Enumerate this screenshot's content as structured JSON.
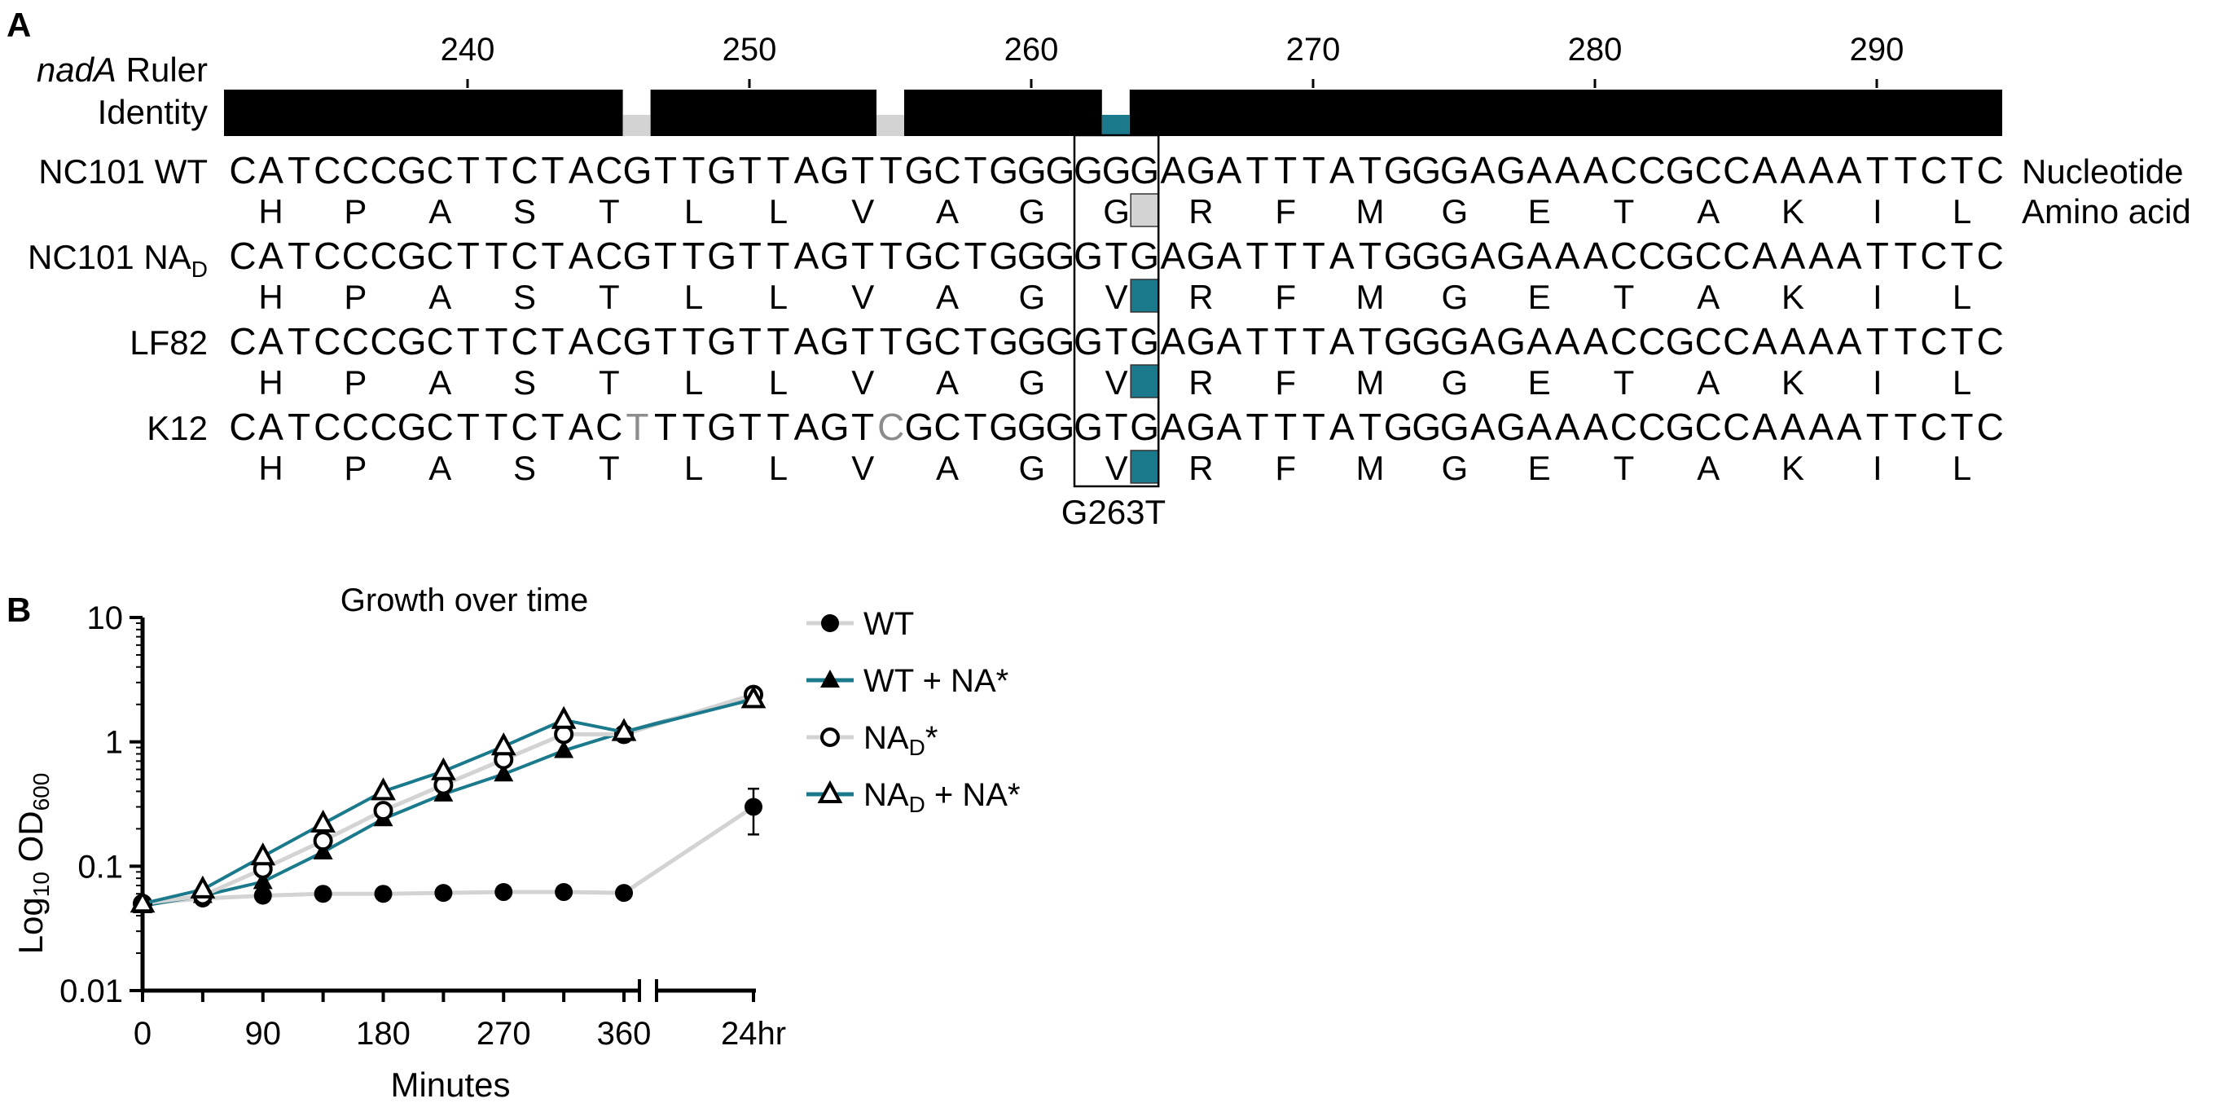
{
  "panel_a": {
    "letter": "A",
    "ruler_gene": "nadA",
    "ruler_word": "Ruler",
    "identity_label": "Identity",
    "ruler_ticks": [
      "240",
      "250",
      "260",
      "270",
      "280",
      "290"
    ],
    "identity_gaps": [
      {
        "position": 246,
        "color": "#d3d3d3"
      },
      {
        "position": 255,
        "color": "#d3d3d3"
      },
      {
        "position": 263,
        "color": "#1a7a8c"
      }
    ],
    "right_labels": {
      "nucleotide": "Nucleotide",
      "amino_acid": "Amino acid"
    },
    "mutation_label": "G263T",
    "sequences": [
      {
        "name": "NC101 WT",
        "name_sub": "",
        "nt": "CATCCCGCTTCTACGTTGTTAGTTGCTGGGGGGAGATTTATGGGAGAAACCGCCAAAATTCTC",
        "aa": [
          "H",
          "P",
          "A",
          "S",
          "T",
          "L",
          "L",
          "V",
          "A",
          "G",
          "G",
          "R",
          "F",
          "M",
          "G",
          "E",
          "T",
          "A",
          "K",
          "I",
          "L"
        ],
        "grey_nt": [],
        "highlight_aa_color": "#d3d3d3"
      },
      {
        "name": "NC101 NA",
        "name_sub": "D",
        "nt": "CATCCCGCTTCTACGTTGTTAGTTGCTGGGGTGAGATTTATGGGAGAAACCGCCAAAATTCTC",
        "aa": [
          "H",
          "P",
          "A",
          "S",
          "T",
          "L",
          "L",
          "V",
          "A",
          "G",
          "V",
          "R",
          "F",
          "M",
          "G",
          "E",
          "T",
          "A",
          "K",
          "I",
          "L"
        ],
        "grey_nt": [],
        "highlight_aa_color": "#1a7a8c"
      },
      {
        "name": "LF82",
        "name_sub": "",
        "nt": "CATCCCGCTTCTACGTTGTTAGTTGCTGGGGTGAGATTTATGGGAGAAACCGCCAAAATTCTC",
        "aa": [
          "H",
          "P",
          "A",
          "S",
          "T",
          "L",
          "L",
          "V",
          "A",
          "G",
          "V",
          "R",
          "F",
          "M",
          "G",
          "E",
          "T",
          "A",
          "K",
          "I",
          "L"
        ],
        "grey_nt": [],
        "highlight_aa_color": "#1a7a8c"
      },
      {
        "name": "K12",
        "name_sub": "",
        "nt": "CATCCCGCTTCTACTTTGTTAGTCGCTGGGGTGAGATTTATGGGAGAAACCGCCAAAATTCTC",
        "aa": [
          "H",
          "P",
          "A",
          "S",
          "T",
          "L",
          "L",
          "V",
          "A",
          "G",
          "V",
          "R",
          "F",
          "M",
          "G",
          "E",
          "T",
          "A",
          "K",
          "I",
          "L"
        ],
        "grey_nt": [
          14,
          23
        ],
        "highlight_aa_color": "#1a7a8c"
      }
    ]
  },
  "panel_b": {
    "letter": "B",
    "colors": {
      "teal": "#1a7a8c",
      "grey": "#d3d3d3"
    }
  },
  "chart_data": {
    "type": "line",
    "title": "Growth over time",
    "xlabel": "Minutes",
    "ylabel_main": "Log",
    "ylabel_sub1": "10",
    "ylabel_mid": " OD",
    "ylabel_sub2": "600",
    "y_scale": "log",
    "ylim": [
      0.01,
      10
    ],
    "y_ticks": [
      "10",
      "1",
      "0.1",
      "0.01"
    ],
    "x_ticks": [
      "0",
      "90",
      "180",
      "270",
      "360",
      "24hr"
    ],
    "x_axis_break": true,
    "x": [
      0,
      45,
      90,
      135,
      180,
      225,
      270,
      315,
      360,
      "24hr"
    ],
    "legend": "right",
    "series": [
      {
        "name": "WT",
        "line": "grey",
        "marker": "filled-circle",
        "values": [
          0.05,
          0.055,
          0.058,
          0.06,
          0.06,
          0.061,
          0.062,
          0.062,
          0.061,
          0.3
        ],
        "error_24hr": [
          0.18,
          0.42
        ]
      },
      {
        "name": "WT + NA*",
        "line": "teal",
        "marker": "filled-triangle",
        "values": [
          0.048,
          0.058,
          0.075,
          0.13,
          0.24,
          0.38,
          0.55,
          0.85,
          1.2,
          2.3
        ]
      },
      {
        "name": "NA_D*",
        "line": "grey",
        "marker": "open-circle",
        "values": [
          0.05,
          0.058,
          0.095,
          0.16,
          0.28,
          0.45,
          0.72,
          1.15,
          1.15,
          2.4
        ]
      },
      {
        "name": "NA_D + NA*",
        "line": "teal",
        "marker": "open-triangle",
        "values": [
          0.05,
          0.065,
          0.12,
          0.22,
          0.4,
          0.58,
          0.92,
          1.5,
          1.2,
          2.2
        ]
      }
    ]
  }
}
